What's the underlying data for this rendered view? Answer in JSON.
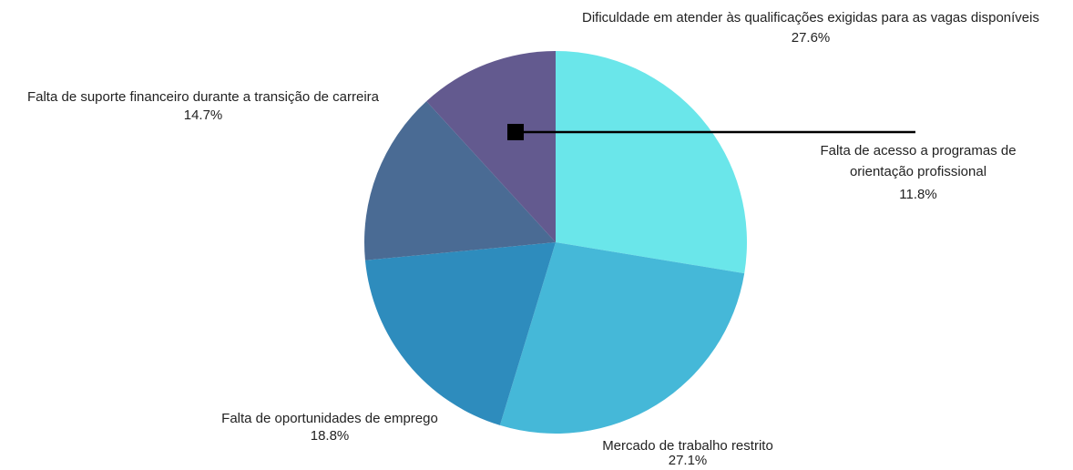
{
  "chart_data": {
    "type": "pie",
    "categories": [
      "Dificuldade em atender às qualificações exigidas para as vagas disponíveis",
      "Mercado de trabalho restrito",
      "Falta de oportunidades de emprego",
      "Falta de suporte financeiro durante a transição de carreira",
      "Falta de acesso a programas de orientação profissional"
    ],
    "values": [
      27.6,
      27.1,
      18.8,
      14.7,
      11.8
    ],
    "value_labels": [
      "27.6%",
      "27.1%",
      "18.8%",
      "14.7%",
      "11.8%"
    ],
    "colors": [
      "#6ae6ea",
      "#45b8d8",
      "#2e8cbd",
      "#4a6b94",
      "#635a8f"
    ]
  }
}
